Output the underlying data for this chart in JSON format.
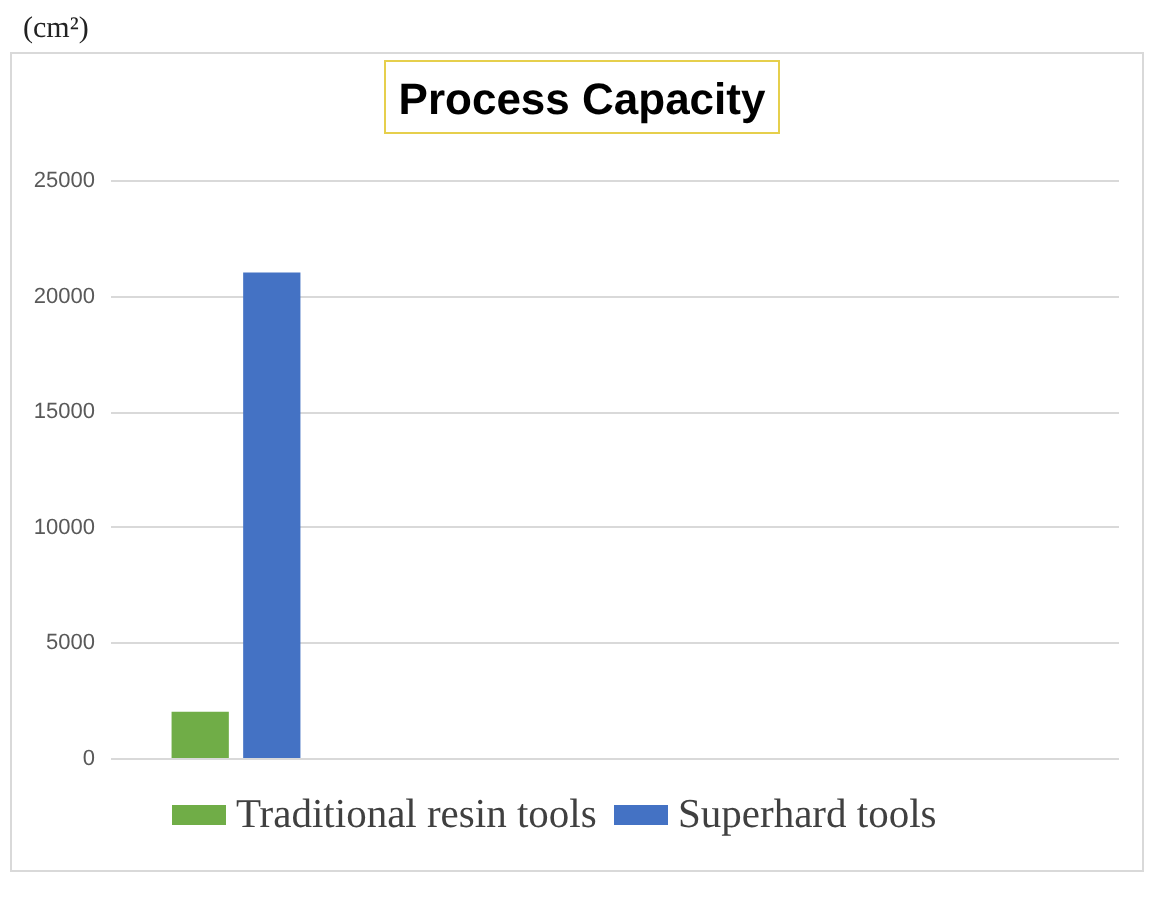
{
  "chart_data": {
    "type": "bar",
    "title": "Process Capacity",
    "ylabel": "(cm²)",
    "categories": [
      null,
      null,
      null,
      null
    ],
    "series": [
      {
        "name": "Traditional resin tools",
        "color": "#70ad47",
        "values": [
          2000,
          null,
          null,
          null
        ]
      },
      {
        "name": "Superhard tools",
        "color": "#4472c4",
        "values": [
          21000,
          null,
          null,
          null
        ]
      }
    ],
    "ylim": [
      0,
      25000
    ],
    "yticks": [
      0,
      5000,
      10000,
      15000,
      20000,
      25000
    ],
    "grid": "y",
    "legend": "bottom"
  }
}
